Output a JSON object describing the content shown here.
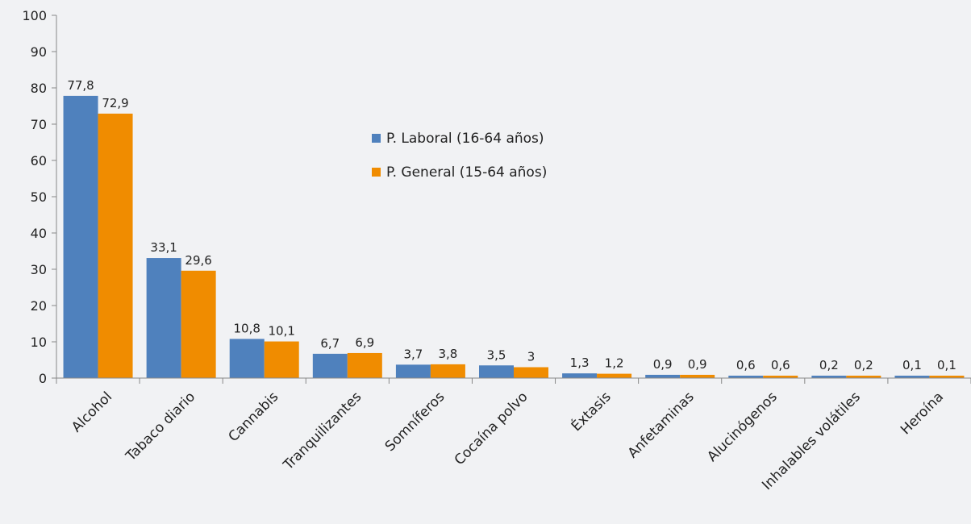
{
  "chart_data": {
    "type": "bar",
    "title": "",
    "xlabel": "",
    "ylabel": "",
    "ylim": [
      0,
      100
    ],
    "yticks": [
      0,
      10,
      20,
      30,
      40,
      50,
      60,
      70,
      80,
      90,
      100
    ],
    "grid": false,
    "legend_position": "center-top",
    "categories": [
      "Alcohol",
      "Tabaco diario",
      "Cannabis",
      "Tranquilizantes",
      "Somníferos",
      "Cocaína polvo",
      "Éxtasis",
      "Anfetaminas",
      "Alucinógenos",
      "Inhalables volátiles",
      "Heroína"
    ],
    "series": [
      {
        "name": "P. Laboral (16-64 años)",
        "color": "#4f81bd",
        "values": [
          77.8,
          33.1,
          10.8,
          6.7,
          3.7,
          3.5,
          1.3,
          0.9,
          0.6,
          0.2,
          0.1
        ],
        "labels": [
          "77,8",
          "33,1",
          "10,8",
          "6,7",
          "3,7",
          "3,5",
          "1,3",
          "0,9",
          "0,6",
          "0,2",
          "0,1"
        ]
      },
      {
        "name": "P. General (15-64 años)",
        "color": "#f08c00",
        "values": [
          72.9,
          29.6,
          10.1,
          6.9,
          3.8,
          3,
          1.2,
          0.9,
          0.6,
          0.2,
          0.1
        ],
        "labels": [
          "72,9",
          "29,6",
          "10,1",
          "6,9",
          "3,8",
          "3",
          "1,2",
          "0,9",
          "0,6",
          "0,2",
          "0,1"
        ]
      }
    ]
  }
}
